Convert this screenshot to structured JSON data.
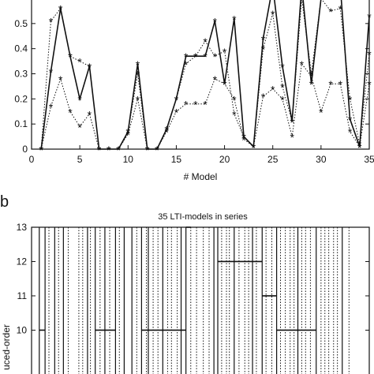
{
  "panel_labels": {
    "b": "b"
  },
  "chart_data": [
    {
      "type": "line",
      "title": "",
      "xlabel": "# Model",
      "ylabel": "",
      "xlim": [
        0,
        35
      ],
      "ylim": [
        0,
        0.6
      ],
      "xticks": [
        0,
        5,
        10,
        15,
        20,
        25,
        30,
        35
      ],
      "yticks": [
        0,
        0.1,
        0.2,
        0.3,
        0.4,
        0.5
      ],
      "x": [
        1,
        2,
        3,
        4,
        5,
        6,
        7,
        8,
        9,
        10,
        11,
        12,
        13,
        14,
        15,
        16,
        17,
        18,
        19,
        20,
        21,
        22,
        23,
        24,
        25,
        26,
        27,
        28,
        29,
        30,
        31,
        32,
        33,
        34,
        35
      ],
      "series": [
        {
          "style": "solid",
          "marker": "*",
          "values": [
            0,
            0.31,
            0.56,
            0.37,
            0.2,
            0.33,
            0,
            0,
            0,
            0.07,
            0.34,
            0,
            0,
            0.08,
            0.2,
            0.37,
            0.37,
            0.37,
            0.51,
            0.26,
            0.52,
            0.05,
            0.01,
            0.44,
            0.65,
            0.33,
            0.11,
            0.65,
            0.26,
            0.6,
            0.65,
            0.65,
            0.12,
            0.01,
            0.53
          ]
        },
        {
          "style": "dotted",
          "marker": "*",
          "values": [
            0,
            0.51,
            0.56,
            0.37,
            0.35,
            0.33,
            0,
            0,
            0,
            0.07,
            0.3,
            0,
            0,
            0.08,
            0.2,
            0.34,
            0.37,
            0.43,
            0.37,
            0.39,
            0.14,
            0.05,
            0.01,
            0.4,
            0.54,
            0.25,
            0.11,
            0.6,
            0.3,
            0.6,
            0.55,
            0.56,
            0.2,
            0.02,
            0.38
          ]
        },
        {
          "style": "dotted",
          "marker": "*",
          "values": [
            0,
            0.17,
            0.28,
            0.15,
            0.09,
            0.14,
            0,
            0,
            0,
            0.06,
            0.2,
            0,
            0,
            0.07,
            0.15,
            0.18,
            0.18,
            0.18,
            0.28,
            0.26,
            0.2,
            0.04,
            0.01,
            0.21,
            0.24,
            0.2,
            0.05,
            0.34,
            0.29,
            0.15,
            0.26,
            0.26,
            0.07,
            0.01,
            0.26
          ]
        }
      ]
    },
    {
      "type": "line",
      "title": "35 LTI-models in series",
      "xlabel": "",
      "ylabel": "uced-order",
      "ylim": [
        8.4,
        13
      ],
      "yticks": [
        10,
        11,
        12,
        13
      ],
      "solid_x": [
        0.8,
        1.4,
        2.4,
        3.3,
        5.8,
        6.6,
        7.6,
        8.7,
        9.6,
        10.4,
        11.4,
        12.1,
        13.6,
        15.5,
        16.0,
        18.9,
        19.3,
        21.0,
        22.9,
        23.9,
        25.4,
        27.6,
        29.5,
        32.2
      ],
      "dotted_x": [
        1.8,
        2.8,
        3.8,
        4.9,
        5.3,
        6.1,
        7.1,
        8.1,
        9.1,
        10.9,
        11.9,
        12.6,
        13.1,
        14.1,
        14.5,
        15.1,
        16.5,
        17.1,
        17.8,
        18.4,
        19.7,
        20.2,
        20.5,
        21.5,
        22.1,
        22.5,
        23.3,
        24.3,
        24.9,
        25.8,
        26.3,
        26.8,
        27.2,
        28.0,
        28.4,
        28.9,
        30.0,
        30.4,
        30.8,
        31.3,
        31.7,
        32.9
      ],
      "steps": [
        {
          "x": [
            0.8,
            1.4
          ],
          "y": 10
        },
        {
          "x": [
            6.6,
            8.7
          ],
          "y": 10
        },
        {
          "x": [
            11.4,
            16.0
          ],
          "y": 10
        },
        {
          "x": [
            16.0,
            16.5
          ],
          "y": 13
        },
        {
          "x": [
            19.3,
            23.9
          ],
          "y": 12
        },
        {
          "x": [
            23.9,
            25.4
          ],
          "y": 11
        },
        {
          "x": [
            25.4,
            29.5
          ],
          "y": 10
        }
      ]
    }
  ]
}
